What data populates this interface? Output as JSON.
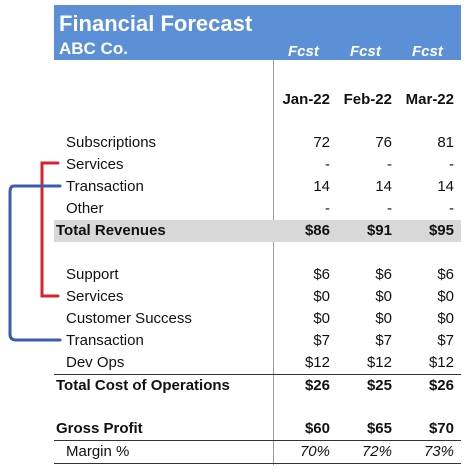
{
  "header": {
    "title": "Financial Forecast",
    "subtitle": "ABC Co.",
    "column_tags": [
      "Fcst",
      "Fcst",
      "Fcst"
    ]
  },
  "columns": [
    "Jan-22",
    "Feb-22",
    "Mar-22"
  ],
  "rows": {
    "subscriptions": {
      "label": "Subscriptions",
      "values": [
        "72",
        "76",
        "81"
      ]
    },
    "services_rev": {
      "label": "Services",
      "values": [
        "-",
        "-",
        "-"
      ]
    },
    "transaction_rev": {
      "label": "Transaction",
      "values": [
        "14",
        "14",
        "14"
      ]
    },
    "other": {
      "label": "Other",
      "values": [
        "-",
        "-",
        "-"
      ]
    },
    "total_revenues": {
      "label": "Total Revenues",
      "values": [
        "$86",
        "$91",
        "$95"
      ]
    },
    "support": {
      "label": "Support",
      "values": [
        "$6",
        "$6",
        "$6"
      ]
    },
    "services_cost": {
      "label": "Services",
      "values": [
        "$0",
        "$0",
        "$0"
      ]
    },
    "customer_success": {
      "label": "Customer Success",
      "values": [
        "$0",
        "$0",
        "$0"
      ]
    },
    "transaction_cost": {
      "label": "Transaction",
      "values": [
        "$7",
        "$7",
        "$7"
      ]
    },
    "dev_ops": {
      "label": "Dev Ops",
      "values": [
        "$12",
        "$12",
        "$12"
      ]
    },
    "total_cost": {
      "label": "Total Cost of Operations",
      "values": [
        "$26",
        "$25",
        "$26"
      ]
    },
    "gross_profit": {
      "label": "Gross Profit",
      "values": [
        "$60",
        "$65",
        "$70"
      ]
    },
    "margin": {
      "label": "Margin %",
      "values": [
        "70%",
        "72%",
        "73%"
      ]
    }
  },
  "colors": {
    "header_bg": "#5b8fd6",
    "total_row_bg": "#d8d8d8",
    "services_bracket": "#d9232b",
    "transaction_bracket": "#3a5db0"
  }
}
